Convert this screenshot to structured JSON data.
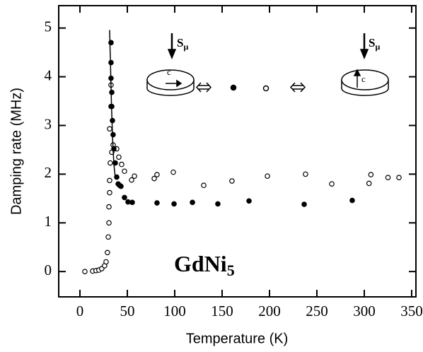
{
  "chart_data": {
    "type": "scatter",
    "x_label": "Temperature (K)",
    "y_label": "Damping rate (MHz)",
    "xlim": [
      -22.4,
      354.5
    ],
    "ylim": [
      -0.52,
      5.46
    ],
    "xticks": [
      0,
      50,
      100,
      150,
      200,
      250,
      300,
      350
    ],
    "yticks": [
      0,
      1,
      2,
      3,
      4,
      5
    ],
    "sample": {
      "main": "GdNi",
      "sub": "5"
    },
    "muon_spin": {
      "main": "S",
      "sub": "μ"
    },
    "c_axis": "c",
    "series": [
      {
        "style": "open-circle",
        "color": "#000000",
        "x": [
          5.2,
          13.4,
          17,
          20,
          23,
          26,
          27.6,
          29,
          29.9,
          30.6,
          30.6,
          31.3,
          31.3,
          32,
          31.3,
          32.8,
          32.8,
          33.6,
          35,
          38.8,
          41,
          44,
          47,
          54.5,
          57.5,
          78.4,
          81.3,
          98.5,
          130.6,
          160.4,
          197.8,
          238,
          265.7,
          307,
          305,
          325,
          336.6
        ],
        "values": [
          0,
          0.01,
          0.02,
          0.03,
          0.06,
          0.12,
          0.2,
          0.39,
          0.71,
          1.0,
          1.33,
          1.62,
          1.87,
          2.23,
          2.93,
          3.39,
          3.83,
          2.45,
          2.6,
          2.52,
          2.35,
          2.2,
          2.06,
          1.88,
          1.96,
          1.91,
          1.99,
          2.04,
          1.77,
          1.86,
          1.96,
          2.0,
          1.8,
          1.99,
          1.81,
          1.93,
          1.93
        ]
      },
      {
        "style": "filled-circle",
        "color": "#000000",
        "x": [
          32.8,
          32.8,
          32.8,
          33.6,
          33.6,
          34.3,
          35,
          35.8,
          37.3,
          38.8,
          40.3,
          41.8,
          43.3,
          47,
          50.7,
          55.2,
          81.3,
          99.3,
          118.7,
          145.5,
          178.4,
          236.6,
          287.3
        ],
        "values": [
          4.7,
          4.29,
          3.97,
          3.68,
          3.39,
          3.1,
          2.81,
          2.52,
          2.23,
          1.94,
          1.8,
          1.77,
          1.75,
          1.52,
          1.43,
          1.42,
          1.41,
          1.39,
          1.42,
          1.39,
          1.45,
          1.38,
          1.46
        ]
      },
      {
        "style": "line",
        "color": "#000000",
        "x": [
          31.3,
          32.3,
          33.3,
          34.5,
          35.8,
          37.5
        ],
        "values": [
          4.96,
          4.2,
          3.4,
          2.7,
          2.2,
          1.9
        ]
      }
    ]
  }
}
